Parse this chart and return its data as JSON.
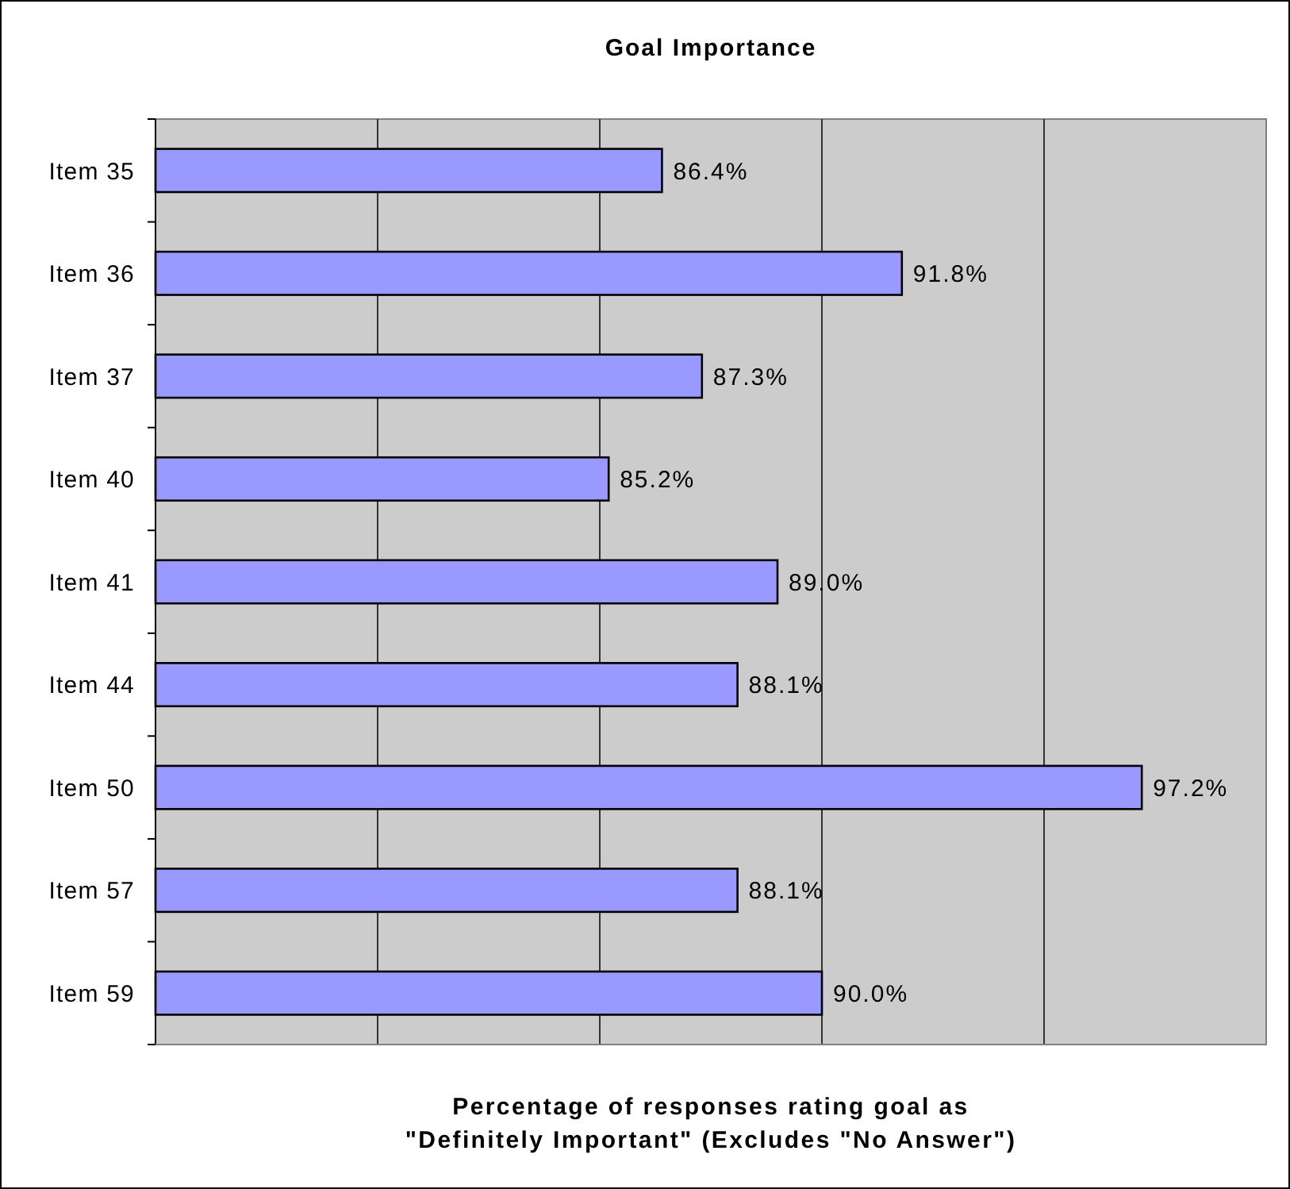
{
  "chart_data": {
    "type": "bar",
    "orientation": "horizontal",
    "title": "Goal Importance",
    "xlabel": "Percentage of responses rating goal as\n\"Definitely Important\" (Excludes \"No Answer\")",
    "categories": [
      "Item 35",
      "Item 36",
      "Item 37",
      "Item 40",
      "Item 41",
      "Item 44",
      "Item 50",
      "Item 57",
      "Item 59"
    ],
    "values": [
      86.4,
      91.8,
      87.3,
      85.2,
      89.0,
      88.1,
      97.2,
      88.1,
      90.0
    ],
    "value_labels": [
      "86.4%",
      "91.8%",
      "87.3%",
      "85.2%",
      "89.0%",
      "88.1%",
      "97.2%",
      "88.1%",
      "90.0%"
    ],
    "color": "#9999ff",
    "xlim": [
      75,
      100
    ],
    "xticks": [
      {
        "value": 80,
        "label": null
      },
      {
        "value": 85,
        "label": null
      },
      {
        "value": 90,
        "label": null
      },
      {
        "value": 95,
        "label": null
      }
    ],
    "grid": "x",
    "tick_labels": "y"
  }
}
